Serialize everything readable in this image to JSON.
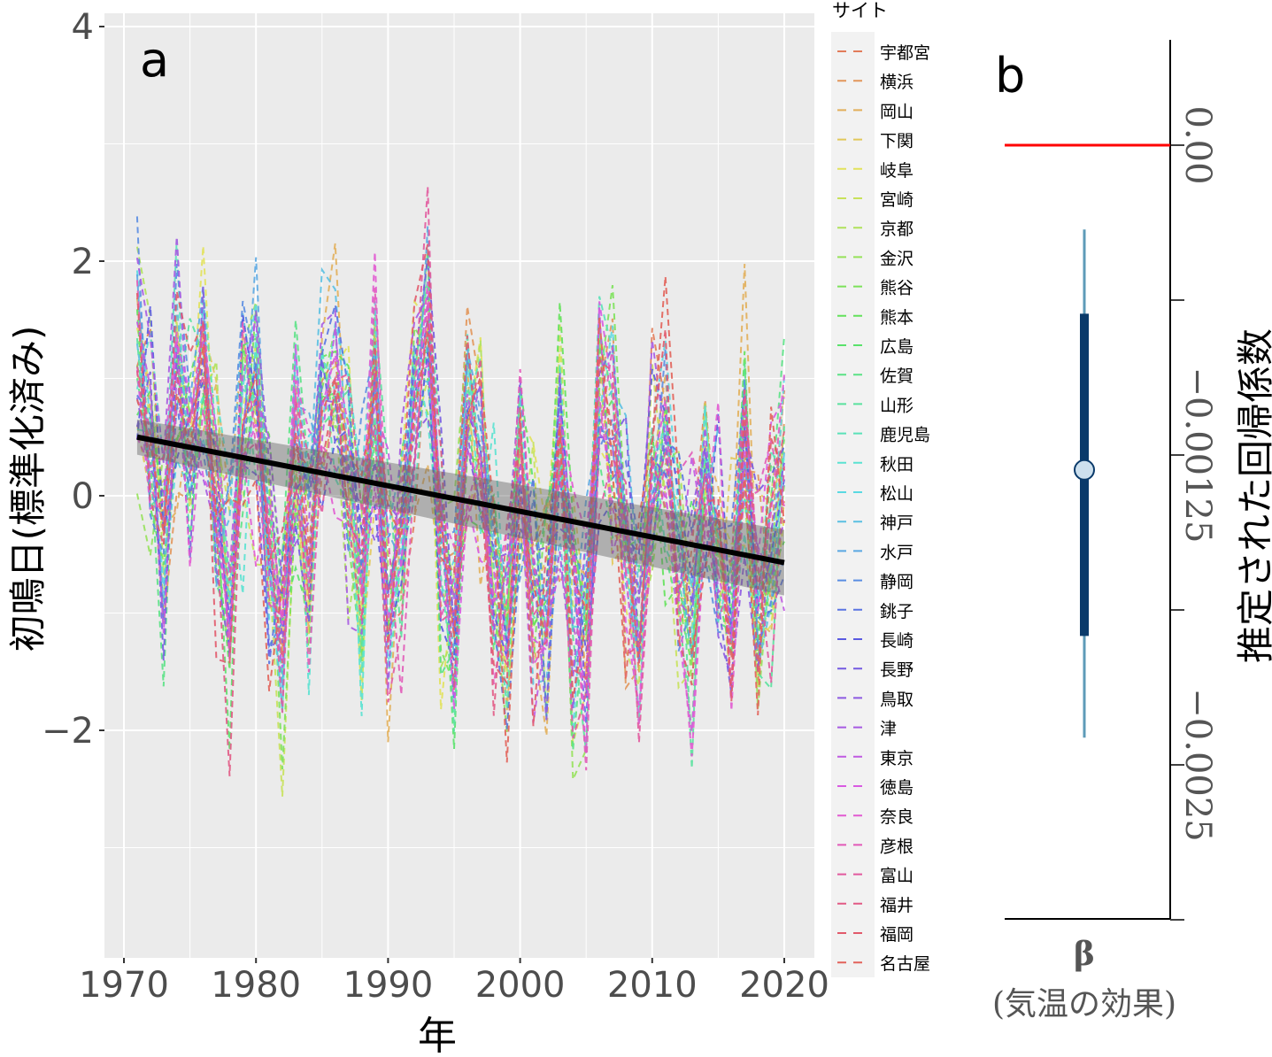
{
  "chart_data": [
    {
      "type": "line",
      "panel_label": "a",
      "xlabel": "年",
      "ylabel": "初鳴日(標準化済み)",
      "xlim": [
        1968.5,
        2022.5
      ],
      "ylim": [
        -3.9,
        4.1
      ],
      "x_ticks": [
        1970,
        1980,
        1990,
        2000,
        2010,
        2020
      ],
      "y_ticks": [
        4,
        2,
        0,
        -2
      ],
      "y_tick_labels": [
        "4",
        "2",
        "0",
        "−2"
      ],
      "grid": true,
      "legend": {
        "title": "サイト",
        "placement": "right"
      },
      "sites": [
        "宇都宮",
        "横浜",
        "岡山",
        "下関",
        "岐阜",
        "宮崎",
        "京都",
        "金沢",
        "熊谷",
        "熊本",
        "広島",
        "佐賀",
        "山形",
        "鹿児島",
        "秋田",
        "松山",
        "神戸",
        "水戸",
        "静岡",
        "銚子",
        "長崎",
        "長野",
        "鳥取",
        "津",
        "東京",
        "徳島",
        "奈良",
        "彦根",
        "富山",
        "福井",
        "福岡",
        "名古屋"
      ],
      "years": [
        1971,
        2020
      ],
      "year_mean_approx": [
        1.0,
        0.5,
        -0.5,
        1.0,
        0.5,
        1.0,
        0.0,
        -1.0,
        0.5,
        0.8,
        -0.5,
        -1.0,
        0.5,
        -0.5,
        0.8,
        1.0,
        0.2,
        -0.5,
        1.0,
        -1.0,
        -0.5,
        0.8,
        1.5,
        -0.5,
        -1.0,
        0.8,
        0.5,
        -0.8,
        -1.2,
        0.2,
        -0.8,
        -1.0,
        0.3,
        -1.0,
        -1.2,
        0.8,
        0.5,
        -0.5,
        -1.0,
        0.2,
        0.5,
        -0.5,
        -1.0,
        0.2,
        -0.3,
        -1.0,
        0.5,
        -1.0,
        -0.5,
        0.3
      ],
      "trend": {
        "x": [
          1971,
          2020
        ],
        "y": [
          0.5,
          -0.57
        ],
        "ci_halfwidth": [
          0.15,
          0.28
        ],
        "color": "#000000"
      }
    },
    {
      "type": "interval",
      "panel_label": "b",
      "ylabel": "推定された回帰係数",
      "category": "β",
      "category_sub": "(気温の効果)",
      "y_ticks": [
        0.0,
        -0.00125,
        -0.0025
      ],
      "y_tick_labels": [
        "0.00",
        "−0.00125",
        "−0.0025"
      ],
      "y_minor_ticks": [
        -0.000625,
        -0.001875,
        -0.003125
      ],
      "ylim": [
        -0.003125,
        0.0004
      ],
      "reference_line": {
        "y": 0.0,
        "color": "#ff0000"
      },
      "estimate": -0.00131,
      "inner_interval": [
        -0.00198,
        -0.00068
      ],
      "outer_interval": [
        -0.00239,
        -0.00034
      ],
      "colors": {
        "inner": "#0a3a6a",
        "outer": "#5e9bb8",
        "point_fill": "#cde0ee"
      }
    }
  ]
}
